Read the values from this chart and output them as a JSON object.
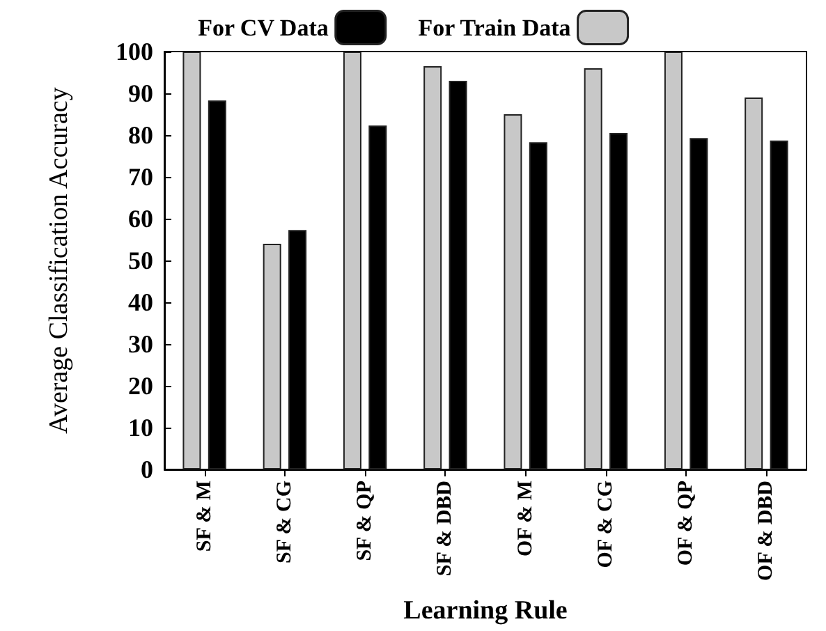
{
  "chart_data": {
    "type": "bar",
    "xlabel": "Learning Rule",
    "ylabel": "Average Classification Accuracy",
    "categories": [
      "SF & M",
      "SF & CG",
      "SF & QP",
      "SF & DBD",
      "OF & M",
      "OF & CG",
      "OF & QP",
      "OF & DBD"
    ],
    "series": [
      {
        "name": "For Train Data",
        "color": "#c8c8c8",
        "values": [
          100,
          54,
          100,
          96.5,
          85,
          96,
          100,
          89
        ]
      },
      {
        "name": "For CV Data",
        "color": "#000000",
        "values": [
          88.3,
          57.3,
          82.3,
          93,
          78.3,
          80.5,
          79.3,
          78.7
        ]
      }
    ],
    "ylim": [
      0,
      100
    ],
    "yticks": [
      0,
      10,
      20,
      30,
      40,
      50,
      60,
      70,
      80,
      90,
      100
    ],
    "grid": false,
    "legend": "top"
  }
}
